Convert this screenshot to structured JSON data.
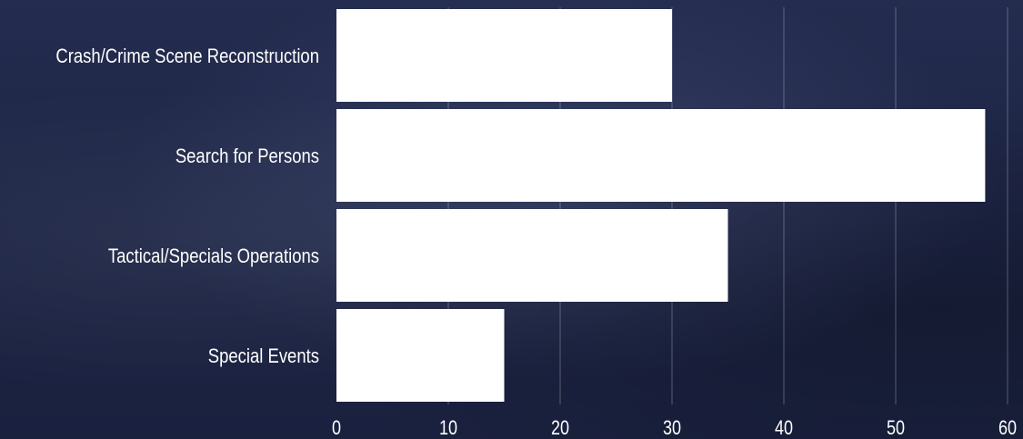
{
  "chart_data": {
    "type": "bar",
    "orientation": "horizontal",
    "categories": [
      "Crash/Crime Scene Reconstruction",
      "Search for Persons",
      "Tactical/Specials Operations",
      "Special Events"
    ],
    "values": [
      30,
      58,
      35,
      15
    ],
    "title": "",
    "xlabel": "",
    "ylabel": "",
    "xlim": [
      0,
      60
    ],
    "xticks": [
      "0",
      "10",
      "20",
      "30",
      "40",
      "50",
      "60"
    ],
    "grid": "vertical",
    "legend": "none",
    "bar_color": "#ffffff",
    "background_color": "#1f2748"
  }
}
